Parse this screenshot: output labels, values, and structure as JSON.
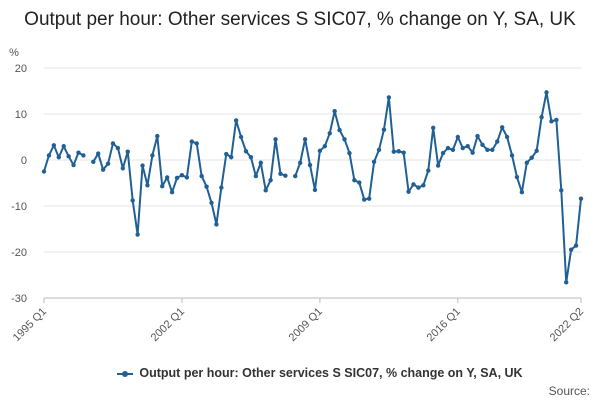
{
  "title": "Output per hour: Other services S SIC07, % change on Y, SA, UK",
  "unit_label": "%",
  "legend_label": "Output per hour: Other services S SIC07, % change on Y, SA, UK",
  "source_label": "Source:",
  "colors": {
    "series": "#206095",
    "grid": "#e6e6e6",
    "axis": "#bbbbbb"
  },
  "chart_data": {
    "type": "line",
    "title": "Output per hour: Other services S SIC07, % change on Y, SA, UK",
    "ylabel": "%",
    "xlabel": "",
    "ylim": [
      -30,
      20
    ],
    "yticks": [
      20,
      10,
      0,
      -10,
      -20,
      -30
    ],
    "xlim_quarters": [
      "1995 Q1",
      "2022 Q2"
    ],
    "xtick_labels": [
      "1995 Q1",
      "2002 Q1",
      "2009 Q1",
      "2016 Q1",
      "2022 Q2"
    ],
    "grid": true,
    "legend_position": "bottom",
    "series": [
      {
        "name": "Output per hour: Other services S SIC07, % change on Y, SA, UK",
        "start_quarter": "1995 Q1",
        "values": [
          -2.5,
          1.0,
          3.2,
          0.6,
          3.0,
          0.8,
          -1.1,
          1.6,
          1.0,
          null,
          -0.4,
          1.4,
          -2.1,
          -0.8,
          3.6,
          2.6,
          -1.8,
          1.8,
          -8.8,
          -16.2,
          -1.2,
          -5.5,
          1.0,
          5.2,
          -5.7,
          -3.8,
          -7.0,
          -3.9,
          -3.3,
          -3.8,
          4.0,
          3.6,
          -3.5,
          -5.8,
          -9.3,
          -14.0,
          -6.0,
          1.3,
          0.6,
          8.6,
          5.0,
          1.9,
          0.6,
          -3.5,
          -0.6,
          -6.6,
          -4.4,
          4.5,
          -3.0,
          -3.4,
          null,
          -3.5,
          -0.6,
          4.5,
          -1.1,
          -6.5,
          2.0,
          3.0,
          5.8,
          10.6,
          6.5,
          4.5,
          1.5,
          -4.4,
          -4.9,
          -8.6,
          -8.4,
          -0.4,
          2.2,
          6.6,
          13.6,
          1.8,
          1.9,
          1.6,
          -6.9,
          -5.3,
          -6.0,
          -5.5,
          -2.3,
          7.0,
          -1.2,
          1.5,
          2.6,
          2.2,
          5.0,
          2.6,
          3.0,
          1.6,
          5.2,
          3.3,
          2.2,
          2.2,
          4.0,
          7.1,
          5.0,
          1.0,
          -3.7,
          -7.0,
          -0.6,
          0.5,
          2.0,
          9.3,
          14.7,
          8.4,
          8.7,
          -6.6,
          -26.6,
          -19.5,
          -18.6,
          -8.4
        ]
      }
    ]
  }
}
